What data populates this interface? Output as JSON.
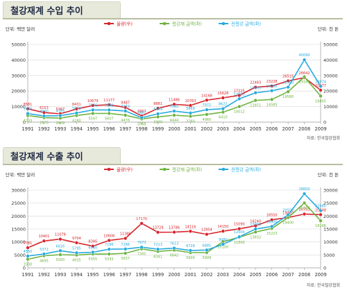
{
  "chart_data": [
    {
      "type": "line",
      "title": "철강재계 수입 추이",
      "left_unit": "단위: 백만 달러",
      "right_unit": "단위: 천 톤",
      "source": "자료: 한국철강협회",
      "x": [
        "1991",
        "1992",
        "1993",
        "1994",
        "1995",
        "1996",
        "1997",
        "1998",
        "1999",
        "2000",
        "2001",
        "2002",
        "2003",
        "2004",
        "2005",
        "2006",
        "2007",
        "2008",
        "2009"
      ],
      "ylim_left": [
        0,
        50000
      ],
      "yticks_left": [
        "0",
        "10000",
        "20000",
        "30000",
        "40000",
        "50000"
      ],
      "ylim_right": [
        0,
        50000
      ],
      "yticks_right": [
        "0",
        "10000",
        "20000",
        "30000",
        "40000",
        "50000"
      ],
      "legend_position": "top-center",
      "series": [
        {
          "name": "물량(우)",
          "color": "#d8232a",
          "axis": "right",
          "values": [
            8581,
            6153,
            5367,
            8431,
            10679,
            11177,
            9487,
            3967,
            8881,
            11486,
            10763,
            14168,
            15628,
            17225,
            22483,
            23228,
            26515,
            28642,
            20577
          ],
          "labels": [
            "8581",
            "6153",
            "5367",
            "8431",
            "10679",
            "11177",
            "9487",
            "3967",
            "8881",
            "11486",
            "10763",
            "14168",
            "15628",
            "17225",
            "22483",
            "23228",
            "26515",
            "28642",
            "20577"
          ]
        },
        {
          "name": "철강재 금액(좌)",
          "color": "#6db33f",
          "axis": "left",
          "values": [
            4233,
            2870,
            2609,
            4280,
            5597,
            5607,
            4476,
            2068,
            3390,
            4444,
            3780,
            4960,
            6410,
            10012,
            13971,
            14585,
            19580,
            29161,
            16805
          ],
          "labels": [
            "4233",
            "2870",
            "2609",
            "4280",
            "5597",
            "5607",
            "4476",
            "2068",
            "3390",
            "4444",
            "3780",
            "4960",
            "6410",
            "10012",
            "13971",
            "14585",
            "19580",
            "29161",
            "16805"
          ]
        },
        {
          "name": "전철강 금액(좌)",
          "color": "#27aadd",
          "axis": "left",
          "values": [
            5486,
            3960,
            4165,
            5879,
            7876,
            7842,
            7179,
            2867,
            5369,
            7085,
            5889,
            7972,
            8622,
            14989,
            18900,
            20200,
            22500,
            40090,
            23074
          ],
          "labels": [
            "5486",
            "3960",
            "4165",
            "5879",
            "7876",
            "7842",
            "7179",
            "2867",
            "5369",
            "7085",
            "5889",
            "7972",
            "8622",
            "14989",
            "18900",
            "20200",
            "22500",
            "40090",
            "23074"
          ]
        }
      ]
    },
    {
      "type": "line",
      "title": "철강재계 수출 추이",
      "left_unit": "단위: 백만 달러",
      "right_unit": "단위: 천 톤",
      "source": "자료: 한국철강협회",
      "x": [
        "1991",
        "1992",
        "1993",
        "1994",
        "1995",
        "1996",
        "1997",
        "1998",
        "1999",
        "2000",
        "2001",
        "2002",
        "2003",
        "2004",
        "2005",
        "2006",
        "2007",
        "2008",
        "2009"
      ],
      "ylim_left": [
        0,
        30000
      ],
      "yticks_left": [
        "0",
        "5000",
        "10000",
        "15000",
        "20000",
        "25000",
        "30000"
      ],
      "ylim_right": [
        0,
        30000
      ],
      "yticks_right": [
        "0",
        "5000",
        "10000",
        "15000",
        "20000",
        "25000",
        "30000"
      ],
      "legend_position": "top-center",
      "series": [
        {
          "name": "물량(우)",
          "color": "#d8232a",
          "axis": "right",
          "values": [
            7781,
            10401,
            11078,
            9704,
            8395,
            10608,
            11386,
            17170,
            13729,
            13786,
            14116,
            12954,
            14150,
            15090,
            16240,
            18550,
            19420,
            20781,
            20548
          ],
          "labels": [
            "7781",
            "10401",
            "11078",
            "9704",
            "8395",
            "10608",
            "11386",
            "17170",
            "13729",
            "13786",
            "14116",
            "12954",
            "14150",
            "15090",
            "16240",
            "18550",
            "19420",
            "20781",
            "20548"
          ]
        },
        {
          "name": "철강재 금액(좌)",
          "color": "#6db33f",
          "axis": "left",
          "values": [
            3330,
            4695,
            5093,
            4935,
            5355,
            5335,
            5637,
            7305,
            6341,
            6842,
            5900,
            5909,
            10100,
            11800,
            13832,
            15223,
            19400,
            25050,
            18186
          ],
          "labels": [
            "3330",
            "4695",
            "5093",
            "4935",
            "5355",
            "5335",
            "5637",
            "7305",
            "6341",
            "6842",
            "5900",
            "5909",
            "10100",
            "11800",
            "13832",
            "15223",
            "19400",
            "25050",
            "18186"
          ]
        },
        {
          "name": "전철강 금액(좌)",
          "color": "#27aadd",
          "axis": "left",
          "values": [
            4550,
            5372,
            6616,
            5795,
            6040,
            7196,
            7286,
            7973,
            7213,
            7613,
            6728,
            6885,
            9080,
            12000,
            15000,
            16000,
            20500,
            28600,
            22080
          ],
          "labels": [
            "4550",
            "5372",
            "6616",
            "5795",
            "6040",
            "7196",
            "7286",
            "7973",
            "7213",
            "7613",
            "6728",
            "6885",
            "9080",
            "12000",
            "15000",
            "16000",
            "20500",
            "28600",
            "22080"
          ]
        }
      ]
    }
  ]
}
